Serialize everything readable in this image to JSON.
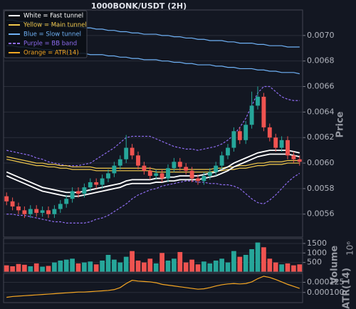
{
  "chart_data": [
    {
      "type": "candlestick",
      "title": "1000BONK/USDT (2H)",
      "ylabel": "Price",
      "categories": [
        null,
        null,
        null,
        null,
        null,
        null,
        null,
        null,
        null,
        null,
        null,
        null,
        null,
        null,
        null,
        null,
        null,
        null,
        null,
        null,
        null,
        null,
        null,
        null,
        null,
        null,
        null,
        null,
        null,
        null,
        null,
        null,
        null,
        null,
        null,
        null,
        null,
        null,
        null,
        null,
        null,
        null,
        null,
        null,
        null,
        null,
        null,
        null,
        null,
        null
      ],
      "open": [
        0.00574,
        0.0057,
        0.00566,
        0.00563,
        0.0056,
        0.00564,
        0.00561,
        0.00563,
        0.0056,
        0.00564,
        0.00568,
        0.00572,
        0.00578,
        0.00576,
        0.00581,
        0.00585,
        0.00583,
        0.00588,
        0.00592,
        0.00598,
        0.00603,
        0.00612,
        0.00606,
        0.00598,
        0.00594,
        0.0059,
        0.00592,
        0.00588,
        0.00596,
        0.00601,
        0.00597,
        0.00594,
        0.00588,
        0.00586,
        0.0059,
        0.00593,
        0.00598,
        0.00606,
        0.00612,
        0.00625,
        0.00618,
        0.0063,
        0.00645,
        0.00652,
        0.00628,
        0.0062,
        0.00612,
        0.00618,
        0.00606,
        0.00603
      ],
      "high": [
        0.00577,
        0.00573,
        0.00569,
        0.00566,
        0.00567,
        0.00567,
        0.00566,
        0.00566,
        0.00567,
        0.00571,
        0.00575,
        0.00581,
        0.00581,
        0.00584,
        0.00588,
        0.00588,
        0.00591,
        0.00595,
        0.00601,
        0.00606,
        0.00622,
        0.00615,
        0.00609,
        0.00601,
        0.00597,
        0.00595,
        0.00595,
        0.00599,
        0.00604,
        0.00604,
        0.006,
        0.00597,
        0.00591,
        0.00593,
        0.00596,
        0.00601,
        0.00609,
        0.00615,
        0.00628,
        0.00628,
        0.00633,
        0.00656,
        0.0066,
        0.00655,
        0.00631,
        0.00623,
        0.00621,
        0.00621,
        0.00609,
        0.00606
      ],
      "low": [
        0.00567,
        0.00563,
        0.0056,
        0.00557,
        0.00557,
        0.00558,
        0.00558,
        0.00557,
        0.00557,
        0.00561,
        0.00565,
        0.00569,
        0.00573,
        0.00573,
        0.00578,
        0.0058,
        0.0058,
        0.00585,
        0.00589,
        0.00595,
        0.006,
        0.00603,
        0.00595,
        0.00591,
        0.00587,
        0.00587,
        0.00585,
        0.00585,
        0.00593,
        0.00594,
        0.00591,
        0.00585,
        0.00583,
        0.00583,
        0.00587,
        0.0059,
        0.00595,
        0.00603,
        0.00609,
        0.00615,
        0.00615,
        0.00627,
        0.00642,
        0.00625,
        0.00617,
        0.00609,
        0.00609,
        0.00603,
        0.006,
        0.00598
      ],
      "close": [
        0.0057,
        0.00566,
        0.00563,
        0.0056,
        0.00564,
        0.00561,
        0.00563,
        0.0056,
        0.00564,
        0.00568,
        0.00572,
        0.00578,
        0.00576,
        0.00581,
        0.00585,
        0.00583,
        0.00588,
        0.00592,
        0.00598,
        0.00603,
        0.00612,
        0.00606,
        0.00598,
        0.00594,
        0.0059,
        0.00592,
        0.00588,
        0.00596,
        0.00601,
        0.00597,
        0.00594,
        0.00588,
        0.00586,
        0.0059,
        0.00593,
        0.00598,
        0.00606,
        0.00612,
        0.00625,
        0.00618,
        0.0063,
        0.00645,
        0.00652,
        0.00628,
        0.0062,
        0.00612,
        0.00618,
        0.00606,
        0.00603,
        0.00601
      ],
      "up_color": "#26a69a",
      "down_color": "#ef5350",
      "lines": [
        {
          "color": "#6fb1f5",
          "dashed": false,
          "values": [
            0.00712,
            0.00712,
            0.00711,
            0.00711,
            0.0071,
            0.0071,
            0.00709,
            0.00709,
            0.00708,
            0.00708,
            0.00707,
            0.00707,
            0.00707,
            0.00706,
            0.00706,
            0.00705,
            0.00705,
            0.00704,
            0.00704,
            0.00703,
            0.00703,
            0.00702,
            0.00702,
            0.00701,
            0.00701,
            0.00701,
            0.007,
            0.007,
            0.00699,
            0.00699,
            0.00698,
            0.00698,
            0.00697,
            0.00697,
            0.00696,
            0.00696,
            0.00696,
            0.00695,
            0.00695,
            0.00694,
            0.00694,
            0.00694,
            0.00693,
            0.00693,
            0.00692,
            0.00692,
            0.00692,
            0.00691,
            0.00691,
            0.00691
          ]
        },
        {
          "color": "#6fb1f5",
          "dashed": false,
          "values": [
            0.00692,
            0.00692,
            0.00691,
            0.00691,
            0.0069,
            0.0069,
            0.00689,
            0.00689,
            0.00688,
            0.00688,
            0.00687,
            0.00687,
            0.00686,
            0.00686,
            0.00685,
            0.00685,
            0.00685,
            0.00684,
            0.00684,
            0.00683,
            0.00683,
            0.00682,
            0.00682,
            0.00681,
            0.00681,
            0.00681,
            0.0068,
            0.0068,
            0.00679,
            0.00679,
            0.00678,
            0.00678,
            0.00677,
            0.00677,
            0.00677,
            0.00676,
            0.00676,
            0.00675,
            0.00675,
            0.00674,
            0.00674,
            0.00674,
            0.00673,
            0.00673,
            0.00672,
            0.00672,
            0.00671,
            0.00671,
            0.00671,
            0.0067
          ]
        },
        {
          "color": "#8e6cf0",
          "dashed": true,
          "values": [
            0.0061,
            0.00609,
            0.00608,
            0.00607,
            0.00606,
            0.00604,
            0.00603,
            0.00601,
            0.006,
            0.00599,
            0.00598,
            0.00598,
            0.00598,
            0.00599,
            0.006,
            0.00603,
            0.00606,
            0.00609,
            0.00612,
            0.00616,
            0.0062,
            0.00621,
            0.00621,
            0.00621,
            0.00621,
            0.00619,
            0.00617,
            0.00615,
            0.00613,
            0.00612,
            0.00611,
            0.00611,
            0.0061,
            0.00611,
            0.00612,
            0.00613,
            0.00615,
            0.00618,
            0.00622,
            0.00628,
            0.00635,
            0.00645,
            0.00655,
            0.0066,
            0.0066,
            0.00656,
            0.00652,
            0.0065,
            0.00649,
            0.00649
          ]
        },
        {
          "color": "#8e6cf0",
          "dashed": true,
          "values": [
            0.0056,
            0.0056,
            0.00559,
            0.00559,
            0.00558,
            0.00557,
            0.00556,
            0.00555,
            0.00554,
            0.00554,
            0.00553,
            0.00553,
            0.00553,
            0.00553,
            0.00554,
            0.00556,
            0.00557,
            0.00559,
            0.00562,
            0.00565,
            0.00568,
            0.00572,
            0.00575,
            0.00577,
            0.00579,
            0.0058,
            0.00582,
            0.00583,
            0.00584,
            0.00585,
            0.00586,
            0.00586,
            0.00585,
            0.00585,
            0.00584,
            0.00584,
            0.00583,
            0.00583,
            0.00582,
            0.0058,
            0.00576,
            0.00572,
            0.00569,
            0.00568,
            0.00571,
            0.00575,
            0.0058,
            0.00585,
            0.00589,
            0.00592
          ]
        },
        {
          "color": "#f2c94c",
          "dashed": false,
          "values": [
            0.00605,
            0.00604,
            0.00603,
            0.00602,
            0.00601,
            0.006,
            0.006,
            0.00599,
            0.00599,
            0.00598,
            0.00598,
            0.00597,
            0.00597,
            0.00597,
            0.00597,
            0.00596,
            0.00596,
            0.00596,
            0.00596,
            0.00596,
            0.00596,
            0.00596,
            0.00596,
            0.00596,
            0.00596,
            0.00595,
            0.00595,
            0.00595,
            0.00595,
            0.00595,
            0.00595,
            0.00595,
            0.00595,
            0.00595,
            0.00595,
            0.00596,
            0.00596,
            0.00597,
            0.00597,
            0.00598,
            0.00598,
            0.00599,
            0.006,
            0.006,
            0.00601,
            0.00601,
            0.00601,
            0.00602,
            0.00602,
            0.00602
          ]
        },
        {
          "color": "#f2c94c",
          "dashed": false,
          "values": [
            0.00603,
            0.00602,
            0.00601,
            0.006,
            0.00599,
            0.00598,
            0.00598,
            0.00597,
            0.00597,
            0.00596,
            0.00596,
            0.00595,
            0.00595,
            0.00595,
            0.00595,
            0.00594,
            0.00594,
            0.00594,
            0.00594,
            0.00594,
            0.00594,
            0.00594,
            0.00594,
            0.00594,
            0.00594,
            0.00593,
            0.00593,
            0.00593,
            0.00593,
            0.00593,
            0.00593,
            0.00593,
            0.00593,
            0.00593,
            0.00593,
            0.00594,
            0.00594,
            0.00595,
            0.00595,
            0.00596,
            0.00596,
            0.00597,
            0.00598,
            0.00598,
            0.00599,
            0.00599,
            0.00599,
            0.006,
            0.006,
            0.006
          ]
        },
        {
          "color": "#ffffff",
          "dashed": false,
          "values": [
            0.00593,
            0.00591,
            0.00589,
            0.00587,
            0.00585,
            0.00583,
            0.00581,
            0.0058,
            0.00579,
            0.00578,
            0.00577,
            0.00577,
            0.00577,
            0.00578,
            0.00579,
            0.0058,
            0.00581,
            0.00582,
            0.00583,
            0.00584,
            0.00586,
            0.00587,
            0.00587,
            0.00587,
            0.00587,
            0.00588,
            0.00588,
            0.00589,
            0.00589,
            0.0059,
            0.0059,
            0.0059,
            0.0059,
            0.00591,
            0.00592,
            0.00593,
            0.00595,
            0.00597,
            0.006,
            0.00602,
            0.00604,
            0.00606,
            0.00608,
            0.00609,
            0.0061,
            0.0061,
            0.0061,
            0.0061,
            0.00609,
            0.00608
          ]
        },
        {
          "color": "#ffffff",
          "dashed": false,
          "values": [
            0.0059,
            0.00588,
            0.00586,
            0.00584,
            0.00582,
            0.0058,
            0.00578,
            0.00577,
            0.00576,
            0.00575,
            0.00574,
            0.00574,
            0.00574,
            0.00575,
            0.00576,
            0.00577,
            0.00578,
            0.00579,
            0.0058,
            0.00581,
            0.00583,
            0.00584,
            0.00584,
            0.00584,
            0.00584,
            0.00585,
            0.00585,
            0.00586,
            0.00586,
            0.00587,
            0.00587,
            0.00587,
            0.00587,
            0.00588,
            0.00589,
            0.0059,
            0.00592,
            0.00594,
            0.00597,
            0.00599,
            0.00601,
            0.00603,
            0.00605,
            0.00606,
            0.00607,
            0.00607,
            0.00607,
            0.00607,
            0.00606,
            0.00605
          ]
        }
      ],
      "legend": [
        {
          "label": "White = Fast tunnel",
          "color": "#ffffff",
          "dashed": false
        },
        {
          "label": "Yellow = Main tunnel",
          "color": "#f2c94c",
          "dashed": false
        },
        {
          "label": "Blue = Slow tunnel",
          "color": "#6fb1f5",
          "dashed": false
        },
        {
          "label": "Purple = BB band",
          "color": "#8e6cf0",
          "dashed": true
        },
        {
          "label": "Orange = ATR(14)",
          "color": "#f5a623",
          "dashed": false
        }
      ],
      "legend_position": "upper left",
      "ylim": [
        0.00542,
        0.0072
      ],
      "yticks": [
        0.0056,
        0.0058,
        {
          "value": 0.006,
          "label": "0.0060"
        },
        0.0062,
        0.0064,
        0.0066,
        0.0068,
        {
          "value": 0.007,
          "label": "0.0070"
        }
      ],
      "grid": true
    },
    {
      "type": "bar",
      "ylabel": "Volume",
      "offset_label": "10⁶",
      "values": [
        350,
        300,
        420,
        380,
        300,
        450,
        280,
        320,
        500,
        600,
        650,
        700,
        450,
        500,
        550,
        400,
        600,
        900,
        650,
        500,
        800,
        1100,
        600,
        500,
        700,
        450,
        1000,
        600,
        700,
        1050,
        500,
        650,
        400,
        550,
        450,
        600,
        700,
        500,
        1100,
        800,
        900,
        1200,
        1550,
        1300,
        700,
        500,
        400,
        450,
        350,
        400
      ],
      "up_color": "#26a69a",
      "down_color": "#ef5350",
      "ylim": [
        0,
        1760
      ],
      "yticks": [
        500,
        1000,
        1500
      ],
      "grid": true
    },
    {
      "type": "line",
      "ylabel": "ATR(14)",
      "color": "#f5a623",
      "values": [
        8.8e-05,
        9e-05,
        9.1e-05,
        9.2e-05,
        9.3e-05,
        9.4e-05,
        9.5e-05,
        9.6e-05,
        9.7e-05,
        9.8e-05,
        9.9e-05,
        0.0001,
        0.000101,
        0.000101,
        0.000102,
        0.000103,
        0.000104,
        0.000105,
        0.000107,
        0.000112,
        0.000122,
        0.00013,
        0.000128,
        0.000127,
        0.000126,
        0.000124,
        0.00012,
        0.000118,
        0.000116,
        0.000114,
        0.000112,
        0.00011,
        0.000108,
        0.000109,
        0.000112,
        0.000116,
        0.000119,
        0.000121,
        0.000122,
        0.000121,
        0.000122,
        0.000126,
        0.000134,
        0.00014,
        0.000137,
        0.000132,
        0.000126,
        0.00012,
        0.000115,
        0.00011
      ],
      "ylim": [
        7.5e-05,
        0.000147
      ],
      "yticks": [
        {
          "value": 0.0001,
          "label": "0.000100"
        },
        {
          "value": 0.000125,
          "label": "0.000125"
        }
      ],
      "grid": true
    }
  ]
}
